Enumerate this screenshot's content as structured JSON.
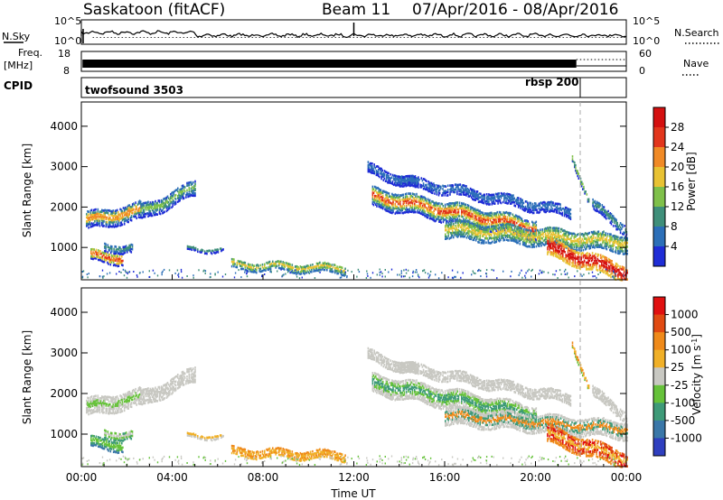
{
  "header": {
    "station": "Saskatoon (fitACF)",
    "beam": "Beam 11",
    "date_range": "07/Apr/2016 - 08/Apr/2016"
  },
  "nsky_panel": {
    "left_label": "N.Sky",
    "right_label": "N.Search",
    "left_ticks": [
      "10^5",
      "10^0"
    ],
    "right_ticks": [
      "10^5",
      "10^0"
    ]
  },
  "freq_panel": {
    "left_label_line1": "Freq.",
    "left_label_line2": "[MHz]",
    "left_ticks": [
      "18",
      "8"
    ],
    "right_ticks": [
      "60",
      "0"
    ],
    "right_label": "Nave"
  },
  "cpid_panel": {
    "label": "CPID",
    "programs": [
      "twofsound 3503",
      "rbsp 200"
    ],
    "program_switch_time": "21:50"
  },
  "time_axis": {
    "label": "Time UT",
    "ticks": [
      "00:00",
      "04:00",
      "08:00",
      "12:00",
      "16:00",
      "20:00",
      "00:00"
    ],
    "range_hours": [
      0,
      24
    ]
  },
  "chart_data": [
    {
      "type": "heatmap",
      "quantity": "power",
      "ylabel": "Slant Range [km]",
      "yticks": [
        1000,
        2000,
        3000,
        4000
      ],
      "ylim": [
        200,
        4600
      ],
      "xlim_hours": [
        0,
        24
      ],
      "colorbar_label": "Power [dB]",
      "colorbar_ticks": [
        "4",
        "8",
        "12",
        "16",
        "20",
        "24",
        "28"
      ],
      "colorbar_colors": [
        "#1f2dd6",
        "#2c6fb8",
        "#3f8f7a",
        "#7fc04a",
        "#e8c233",
        "#f08a26",
        "#e2361c",
        "#d41010"
      ]
    },
    {
      "type": "heatmap",
      "quantity": "velocity",
      "ylabel": "Slant Range [km]",
      "yticks": [
        1000,
        2000,
        3000,
        4000
      ],
      "ylim": [
        200,
        4600
      ],
      "xlim_hours": [
        0,
        24
      ],
      "colorbar_label": "Velocity [m s^-1]",
      "colorbar_ticks": [
        "1000",
        "500",
        "100",
        "25",
        "-25",
        "-100",
        "-500",
        "-1000"
      ],
      "colorbar_colors": [
        "#2f3fbf",
        "#3a77a8",
        "#3e9a78",
        "#66c23a",
        "#c8c8c2",
        "#f0b028",
        "#ef8a1a",
        "#e04a12",
        "#e01010"
      ]
    }
  ]
}
